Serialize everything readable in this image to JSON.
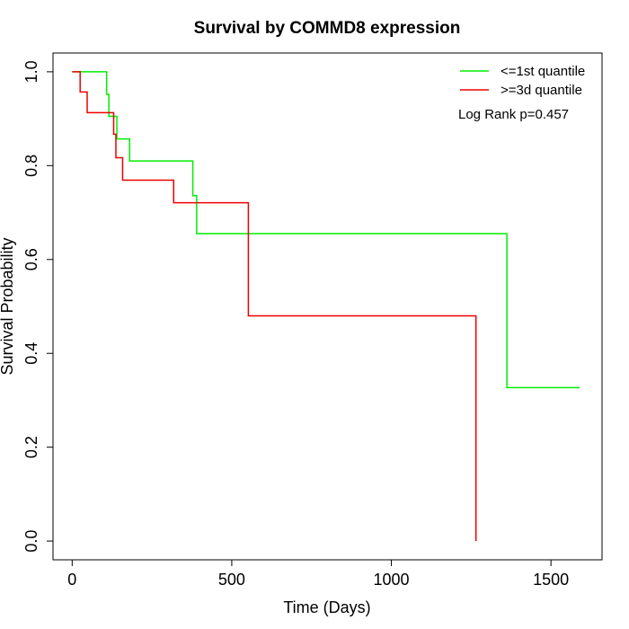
{
  "chart_data": {
    "type": "line",
    "title": "Survival by COMMD8 expression",
    "xlabel": "Time (Days)",
    "ylabel": "Survival Probability",
    "xlim": [
      -60,
      1660
    ],
    "ylim": [
      -0.04,
      1.04
    ],
    "x_ticks": [
      0,
      500,
      1000,
      1500
    ],
    "y_ticks": [
      0.0,
      0.2,
      0.4,
      0.6,
      0.8,
      1.0
    ],
    "x_tick_labels": [
      "0",
      "500",
      "1000",
      "1500"
    ],
    "y_tick_labels": [
      "0.0",
      "0.2",
      "0.4",
      "0.6",
      "0.8",
      "1.0"
    ],
    "grid": false,
    "legend_position": "top-right",
    "annotation": "Log Rank p=0.457",
    "series": [
      {
        "name": "<=1st quantile",
        "color": "#00ee00",
        "steps": [
          [
            0,
            1.0
          ],
          [
            108,
            0.952
          ],
          [
            115,
            0.905
          ],
          [
            140,
            0.857
          ],
          [
            180,
            0.81
          ],
          [
            378,
            0.736
          ],
          [
            390,
            0.655
          ],
          [
            1362,
            0.327
          ],
          [
            1590,
            0.327
          ]
        ]
      },
      {
        "name": ">=3d quantile",
        "color": "#ee0000",
        "steps": [
          [
            0,
            1.0
          ],
          [
            25,
            0.957
          ],
          [
            47,
            0.913
          ],
          [
            130,
            0.867
          ],
          [
            137,
            0.817
          ],
          [
            158,
            0.769
          ],
          [
            318,
            0.721
          ],
          [
            552,
            0.48
          ],
          [
            1265,
            0.0
          ]
        ]
      }
    ]
  }
}
